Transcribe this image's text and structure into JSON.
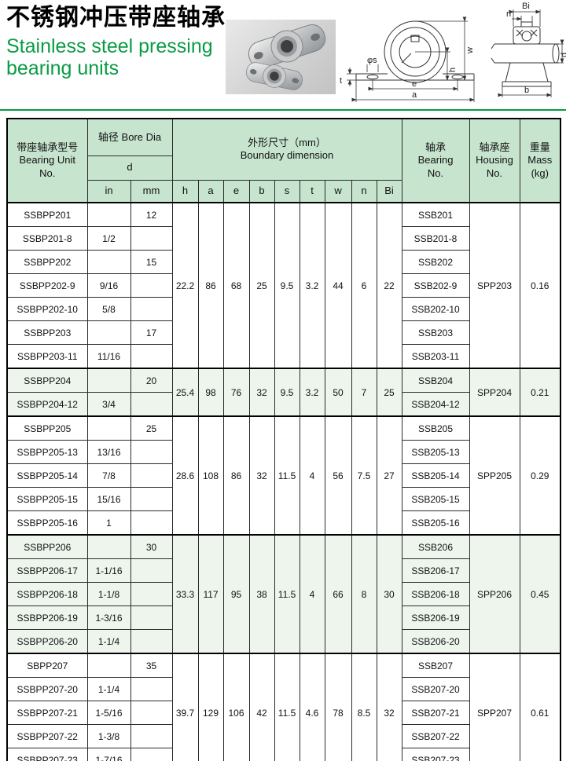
{
  "page": {
    "title_cn": "不锈钢冲压带座轴承",
    "title_en_line1": "Stainless steel pressing",
    "title_en_line2": "bearing units",
    "accent_green": "#0a9b44",
    "header_bg": "#c7e4cf",
    "tint_bg": "#edf5ed"
  },
  "diagram": {
    "front_labels": {
      "phi_s": "φs",
      "t": "t",
      "e": "e",
      "a": "a",
      "h": "h",
      "w": "w"
    },
    "side_labels": {
      "Bi": "Bi",
      "n": "n",
      "d": "d",
      "b": "b"
    }
  },
  "table": {
    "header": {
      "unit_cn": "带座轴承型号",
      "unit_en1": "Bearing Unit",
      "unit_en2": "No.",
      "bore_dia": "轴径 Bore Dia",
      "d": "d",
      "in": "in",
      "mm": "mm",
      "boundary_cn": "外形尺寸（mm）",
      "boundary_en": "Boundary dimension",
      "dim_cols": [
        "h",
        "a",
        "e",
        "b",
        "s",
        "t",
        "w",
        "n",
        "Bi"
      ],
      "bearing_cn": "轴承",
      "bearing_en1": "Bearing",
      "bearing_en2": "No.",
      "housing_cn": "轴承座",
      "housing_en1": "Housing",
      "housing_en2": "No.",
      "mass_cn": "重量",
      "mass_en1": "Mass",
      "mass_en2": "(kg)"
    },
    "groups": [
      {
        "tinted": false,
        "rows": [
          {
            "unit": "SSBPP201",
            "in": "",
            "mm": "12",
            "bearing": "SSB201"
          },
          {
            "unit": "SSBP201-8",
            "in": "1/2",
            "mm": "",
            "bearing": "SSB201-8"
          },
          {
            "unit": "SSBPP202",
            "in": "",
            "mm": "15",
            "bearing": "SSB202"
          },
          {
            "unit": "SSBPP202-9",
            "in": "9/16",
            "mm": "",
            "bearing": "SSB202-9"
          },
          {
            "unit": "SSBPP202-10",
            "in": "5/8",
            "mm": "",
            "bearing": "SSB202-10"
          },
          {
            "unit": "SSBPP203",
            "in": "",
            "mm": "17",
            "bearing": "SSB203"
          },
          {
            "unit": "SSBPP203-11",
            "in": "11/16",
            "mm": "",
            "bearing": "SSB203-11"
          }
        ],
        "dims": [
          "22.2",
          "86",
          "68",
          "25",
          "9.5",
          "3.2",
          "44",
          "6",
          "22"
        ],
        "housing": "SPP203",
        "mass": "0.16"
      },
      {
        "tinted": true,
        "rows": [
          {
            "unit": "SSBPP204",
            "in": "",
            "mm": "20",
            "bearing": "SSB204"
          },
          {
            "unit": "SSBPP204-12",
            "in": "3/4",
            "mm": "",
            "bearing": "SSB204-12"
          }
        ],
        "dims": [
          "25.4",
          "98",
          "76",
          "32",
          "9.5",
          "3.2",
          "50",
          "7",
          "25"
        ],
        "housing": "SPP204",
        "mass": "0.21"
      },
      {
        "tinted": false,
        "rows": [
          {
            "unit": "SSBPP205",
            "in": "",
            "mm": "25",
            "bearing": "SSB205"
          },
          {
            "unit": "SSBPP205-13",
            "in": "13/16",
            "mm": "",
            "bearing": "SSB205-13"
          },
          {
            "unit": "SSBPP205-14",
            "in": "7/8",
            "mm": "",
            "bearing": "SSB205-14"
          },
          {
            "unit": "SSBPP205-15",
            "in": "15/16",
            "mm": "",
            "bearing": "SSB205-15"
          },
          {
            "unit": "SSBPP205-16",
            "in": "1",
            "mm": "",
            "bearing": "SSB205-16"
          }
        ],
        "dims": [
          "28.6",
          "108",
          "86",
          "32",
          "11.5",
          "4",
          "56",
          "7.5",
          "27"
        ],
        "housing": "SPP205",
        "mass": "0.29"
      },
      {
        "tinted": true,
        "rows": [
          {
            "unit": "SSBPP206",
            "in": "",
            "mm": "30",
            "bearing": "SSB206"
          },
          {
            "unit": "SSBPP206-17",
            "in": "1-1/16",
            "mm": "",
            "bearing": "SSB206-17"
          },
          {
            "unit": "SSBPP206-18",
            "in": "1-1/8",
            "mm": "",
            "bearing": "SSB206-18"
          },
          {
            "unit": "SSBPP206-19",
            "in": "1-3/16",
            "mm": "",
            "bearing": "SSB206-19"
          },
          {
            "unit": "SSBPP206-20",
            "in": "1-1/4",
            "mm": "",
            "bearing": "SSB206-20"
          }
        ],
        "dims": [
          "33.3",
          "117",
          "95",
          "38",
          "11.5",
          "4",
          "66",
          "8",
          "30"
        ],
        "housing": "SPP206",
        "mass": "0.45"
      },
      {
        "tinted": false,
        "rows": [
          {
            "unit": "SBPP207",
            "in": "",
            "mm": "35",
            "bearing": "SSB207"
          },
          {
            "unit": "SSBPP207-20",
            "in": "1-1/4",
            "mm": "",
            "bearing": "SSB207-20"
          },
          {
            "unit": "SSBPP207-21",
            "in": "1-5/16",
            "mm": "",
            "bearing": "SSB207-21"
          },
          {
            "unit": "SSBPP207-22",
            "in": "1-3/8",
            "mm": "",
            "bearing": "SSB207-22"
          },
          {
            "unit": "SSBPP207-23",
            "in": "1-7/16",
            "mm": "",
            "bearing": "SSB207-23"
          }
        ],
        "dims": [
          "39.7",
          "129",
          "106",
          "42",
          "11.5",
          "4.6",
          "78",
          "8.5",
          "32"
        ],
        "housing": "SPP207",
        "mass": "0.61"
      }
    ]
  }
}
